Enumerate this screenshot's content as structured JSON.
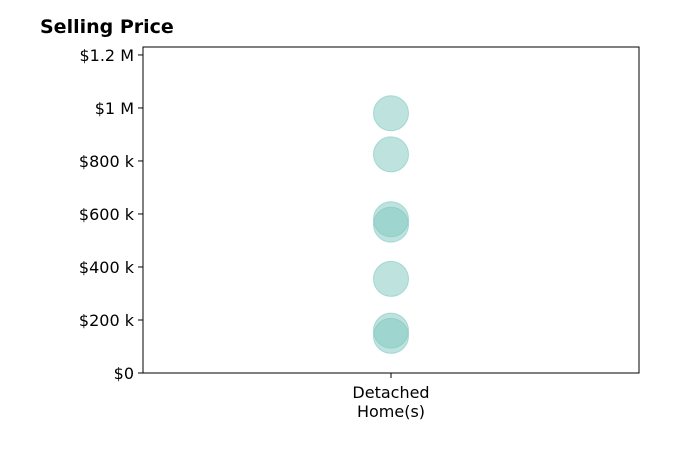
{
  "chart_data": {
    "type": "scatter",
    "title": "Selling Price",
    "xlabel": "",
    "ylabel": "",
    "categories": [
      "Detached\nHome(s)"
    ],
    "category_lines": [
      [
        "Detached",
        "Home(s)"
      ]
    ],
    "ylim": [
      0,
      1230000
    ],
    "yticks": [
      0,
      200000,
      400000,
      600000,
      800000,
      1000000,
      1200000
    ],
    "ytick_labels": [
      "$0",
      "$200 k",
      "$400 k",
      "$600 k",
      "$800 k",
      "$1 M",
      "$1.2 M"
    ],
    "series": [
      {
        "category": "Detached\nHome(s)",
        "values": [
          980000,
          825000,
          580000,
          560000,
          355000,
          160000,
          140000
        ]
      }
    ],
    "grid": false,
    "legend": "none",
    "marker_color": "#7ec8c0"
  }
}
